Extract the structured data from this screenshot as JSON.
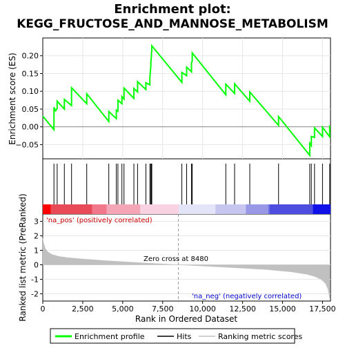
{
  "title_line1": "Enrichment plot:",
  "title_line2": "KEGG_FRUCTOSE_AND_MANNOSE_METABOLISM",
  "chart_data": [
    {
      "type": "line",
      "panel": "enrichment",
      "ylabel": "Enrichment score (ES)",
      "xlim": [
        0,
        18000
      ],
      "ylim": [
        -0.09,
        0.25
      ],
      "yticks": [
        -0.05,
        0.0,
        0.05,
        0.1,
        0.15,
        0.2
      ],
      "ytick_labels": [
        "−0.05",
        "0.00",
        "0.05",
        "0.10",
        "0.15",
        "0.20"
      ],
      "zero_line": true,
      "series": [
        {
          "name": "Enrichment profile",
          "color": "#00ff00",
          "x": [
            0,
            700,
            700,
            800,
            900,
            900,
            1350,
            1350,
            1800,
            1800,
            2750,
            2750,
            4130,
            4130,
            4600,
            4600,
            4700,
            4700,
            4950,
            4950,
            5080,
            5080,
            5700,
            5700,
            5930,
            5930,
            6450,
            6450,
            6700,
            6700,
            6760,
            6760,
            6800,
            6800,
            6820,
            6820,
            8700,
            8700,
            9000,
            9000,
            9300,
            9300,
            9350,
            9350,
            11450,
            11450,
            12000,
            12000,
            12950,
            12950,
            14750,
            14750,
            16700,
            16700,
            16800,
            16800,
            17000,
            17000,
            17500,
            17500,
            17950,
            17950
          ],
          "y": [
            0.03,
            -0.008,
            0.055,
            0.045,
            0.052,
            0.072,
            0.05,
            0.077,
            0.06,
            0.11,
            0.065,
            0.093,
            0.015,
            0.043,
            0.023,
            0.047,
            0.044,
            0.075,
            0.065,
            0.085,
            0.078,
            0.109,
            0.08,
            0.108,
            0.098,
            0.127,
            0.105,
            0.124,
            0.118,
            0.14,
            0.17,
            0.18,
            0.2,
            0.21,
            0.212,
            0.228,
            0.125,
            0.153,
            0.144,
            0.168,
            0.155,
            0.18,
            0.185,
            0.208,
            0.09,
            0.12,
            0.094,
            0.121,
            0.072,
            0.098,
            0.004,
            0.029,
            -0.08,
            -0.046,
            -0.053,
            -0.027,
            -0.03,
            -0.003,
            -0.027,
            -0.001,
            -0.028,
            0.004
          ]
        }
      ]
    },
    {
      "type": "scatter",
      "panel": "hits",
      "series": [
        {
          "name": "Hits",
          "color": "#000000",
          "x": [
            700,
            900,
            1350,
            1800,
            2750,
            4130,
            4600,
            4700,
            4950,
            5080,
            5700,
            5930,
            6450,
            6700,
            6760,
            6800,
            6820,
            8700,
            9000,
            9300,
            9350,
            11450,
            12000,
            12950,
            14750,
            16700,
            16800,
            17000,
            17500,
            17950
          ]
        }
      ]
    },
    {
      "type": "heatmap",
      "panel": "rank-colorbar",
      "colors": [
        "#ff0000",
        "#e84a58",
        "#f07888",
        "#f4a6b6",
        "#f8d2e0",
        "#e4e4f8",
        "#c6c6f0",
        "#9898e6",
        "#6f6fe2",
        "#4d4de0",
        "#1010e8"
      ],
      "boundaries": [
        0,
        500,
        3100,
        4000,
        6100,
        8500,
        10800,
        12700,
        14100,
        14200,
        16900,
        18000
      ]
    },
    {
      "type": "area",
      "panel": "ranked-metric",
      "ylabel": "Ranked list metric (PreRanked)",
      "xlabel": "Rank in Ordered Dataset",
      "xlim": [
        0,
        18000
      ],
      "ylim": [
        -2.5,
        3.5
      ],
      "xticks": [
        0,
        2500,
        5000,
        7500,
        10000,
        12500,
        15000,
        17500
      ],
      "xtick_labels": [
        "0",
        "2,500",
        "5,000",
        "7,500",
        "10,000",
        "12,500",
        "15,000",
        "17,500"
      ],
      "yticks": [
        -2,
        -1,
        0,
        1,
        2,
        3
      ],
      "ytick_labels": [
        "-2",
        "-1",
        "0",
        "1",
        "2",
        "3"
      ],
      "series": [
        {
          "name": "Ranking metric scores",
          "color": "#c0c0c0",
          "x": [
            0,
            50,
            150,
            300,
            600,
            1000,
            1500,
            2500,
            4000,
            6000,
            8480,
            10000,
            12000,
            14000,
            15500,
            16500,
            17000,
            17400,
            17700,
            17850,
            17950
          ],
          "y": [
            1.85,
            1.5,
            1.15,
            0.9,
            0.7,
            0.58,
            0.5,
            0.4,
            0.28,
            0.15,
            0.0,
            -0.08,
            -0.2,
            -0.33,
            -0.48,
            -0.65,
            -0.8,
            -1.0,
            -1.3,
            -1.7,
            -2.3
          ]
        }
      ],
      "annotations": {
        "zero_cross_label": "Zero cross at 8480",
        "zero_cross_x": 8480,
        "na_pos": "'na_pos' (positively correlated)",
        "na_neg": "'na_neg' (negatively correlated)"
      }
    }
  ],
  "legend": {
    "items": [
      {
        "label": "Enrichment profile",
        "color": "#00ff00"
      },
      {
        "label": "Hits",
        "color": "#000000"
      },
      {
        "label": "Ranking metric scores",
        "color": "#c0c0c0"
      }
    ]
  }
}
